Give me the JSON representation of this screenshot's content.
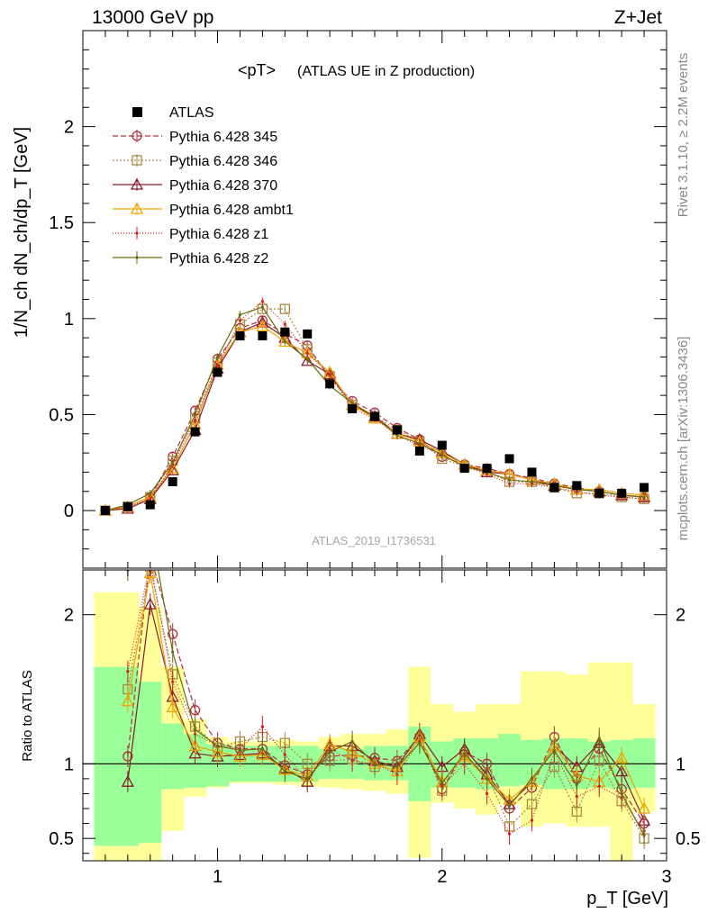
{
  "header": {
    "beam": "13000 GeV pp",
    "process": "Z+Jet"
  },
  "side_labels": {
    "rivet": "Rivet 3.1.10, ≥ 2.2M events",
    "mcplots": "mcplots.cern.ch [arXiv:1306.3436]"
  },
  "chart_data": {
    "type": "scatter",
    "title": "<pT>",
    "subtitle": "(ATLAS UE in Z production)",
    "watermark": "ATLAS_2019_I1736531",
    "xlabel": "p_T [GeV]",
    "ylabel": "1/N_ch dN_ch/dp_T [GeV]",
    "ratio_ylabel": "Ratio to ATLAS",
    "xlim": [
      0.4,
      3.0
    ],
    "ylim": [
      -0.3,
      2.5
    ],
    "ratio_ylim": [
      0.35,
      2.3
    ],
    "x_ticks": [
      "1",
      "2",
      "3"
    ],
    "y_ticks": [
      "0",
      "0.5",
      "1",
      "1.5",
      "2"
    ],
    "ratio_ticks": [
      "0.5",
      "1",
      "2"
    ],
    "x": [
      0.5,
      0.6,
      0.7,
      0.8,
      0.9,
      1.0,
      1.1,
      1.2,
      1.3,
      1.4,
      1.5,
      1.6,
      1.7,
      1.8,
      1.9,
      2.0,
      2.1,
      2.2,
      2.3,
      2.4,
      2.5,
      2.6,
      2.7,
      2.8,
      2.9
    ],
    "data": {
      "name": "ATLAS",
      "values": [
        0.0,
        0.02,
        0.03,
        0.15,
        0.41,
        0.72,
        0.91,
        0.91,
        0.93,
        0.92,
        0.66,
        0.53,
        0.49,
        0.42,
        0.31,
        0.34,
        0.22,
        0.22,
        0.27,
        0.2,
        0.12,
        0.13,
        0.09,
        0.09,
        0.12
      ]
    },
    "series": [
      {
        "name": "Pythia 6.428 345",
        "color": "#b03040",
        "marker": "circle",
        "dash": "6,3",
        "values": [
          0.0,
          0.02,
          0.07,
          0.28,
          0.52,
          0.79,
          0.95,
          0.99,
          0.92,
          0.86,
          0.69,
          0.57,
          0.51,
          0.43,
          0.37,
          0.28,
          0.24,
          0.22,
          0.19,
          0.17,
          0.14,
          0.12,
          0.1,
          0.08,
          0.07
        ],
        "ratio": [
          null,
          1.05,
          2.4,
          1.87,
          1.36,
          1.14,
          1.1,
          1.1,
          0.99,
          0.93,
          1.05,
          1.06,
          1.04,
          1.02,
          1.18,
          0.83,
          1.08,
          1.0,
          0.7,
          0.84,
          1.18,
          0.9,
          1.1,
          0.83,
          0.6
        ]
      },
      {
        "name": "Pythia 6.428 346",
        "color": "#a88a40",
        "marker": "square",
        "dash": "2,2",
        "values": [
          0.0,
          0.02,
          0.07,
          0.26,
          0.48,
          0.77,
          0.97,
          1.05,
          1.05,
          0.84,
          0.7,
          0.55,
          0.49,
          0.42,
          0.36,
          0.27,
          0.23,
          0.2,
          0.15,
          0.15,
          0.12,
          0.09,
          0.09,
          0.07,
          0.06
        ],
        "ratio": [
          null,
          1.5,
          2.32,
          1.6,
          1.25,
          1.11,
          1.15,
          1.18,
          1.14,
          1.0,
          1.02,
          1.03,
          0.98,
          1.0,
          1.17,
          0.82,
          1.06,
          0.93,
          0.58,
          0.73,
          0.98,
          0.68,
          1.02,
          0.75,
          0.5
        ]
      },
      {
        "name": "Pythia 6.428 370",
        "color": "#8b1a2a",
        "marker": "triangle",
        "dash": "",
        "values": [
          0.0,
          0.01,
          0.06,
          0.21,
          0.42,
          0.74,
          0.93,
          0.98,
          0.9,
          0.78,
          0.71,
          0.55,
          0.49,
          0.4,
          0.37,
          0.31,
          0.24,
          0.2,
          0.19,
          0.16,
          0.13,
          0.11,
          0.1,
          0.08,
          0.07
        ],
        "ratio": [
          null,
          0.88,
          2.07,
          1.45,
          1.07,
          1.05,
          1.06,
          1.07,
          0.97,
          0.88,
          1.12,
          1.12,
          1.02,
          0.98,
          1.2,
          0.98,
          1.1,
          0.93,
          0.73,
          0.88,
          1.12,
          0.98,
          1.14,
          0.95,
          0.62
        ]
      },
      {
        "name": "Pythia 6.428 ambt1",
        "color": "#f0a000",
        "marker": "triangle",
        "dash": "",
        "values": [
          0.0,
          0.02,
          0.07,
          0.22,
          0.45,
          0.76,
          0.93,
          0.96,
          0.88,
          0.82,
          0.72,
          0.55,
          0.48,
          0.4,
          0.36,
          0.3,
          0.24,
          0.21,
          0.19,
          0.16,
          0.14,
          0.11,
          0.11,
          0.09,
          0.08
        ],
        "ratio": [
          null,
          1.42,
          2.28,
          1.38,
          1.12,
          1.08,
          1.05,
          1.06,
          0.96,
          0.92,
          1.13,
          1.08,
          1.0,
          0.95,
          1.18,
          0.88,
          1.05,
          0.9,
          0.76,
          0.88,
          1.12,
          0.92,
          0.88,
          1.04,
          0.7
        ]
      },
      {
        "name": "Pythia 6.428 z1",
        "color": "#d42020",
        "marker": "dot",
        "dash": "1,2",
        "values": [
          0.0,
          0.02,
          0.06,
          0.24,
          0.47,
          0.75,
          0.99,
          1.09,
          0.97,
          0.82,
          0.71,
          0.53,
          0.48,
          0.39,
          0.34,
          0.29,
          0.23,
          0.19,
          0.14,
          0.14,
          0.12,
          0.1,
          0.08,
          0.07,
          0.06
        ],
        "ratio": [
          null,
          1.62,
          2.35,
          1.55,
          1.2,
          1.12,
          1.1,
          1.25,
          1.06,
          0.9,
          1.1,
          1.02,
          1.0,
          0.93,
          1.15,
          0.85,
          1.0,
          0.8,
          0.53,
          0.62,
          1.08,
          0.78,
          0.85,
          0.77,
          0.55
        ]
      },
      {
        "name": "Pythia 6.428 z2",
        "color": "#6b6b10",
        "marker": "dot",
        "dash": "",
        "values": [
          0.0,
          0.03,
          0.09,
          0.25,
          0.5,
          0.8,
          1.02,
          1.06,
          0.88,
          0.79,
          0.65,
          0.56,
          0.49,
          0.39,
          0.35,
          0.29,
          0.23,
          0.2,
          0.16,
          0.15,
          0.13,
          0.11,
          0.1,
          0.08,
          0.07
        ],
        "ratio": [
          null,
          2.3,
          2.6,
          1.75,
          1.23,
          1.12,
          1.09,
          1.1,
          0.95,
          0.9,
          1.08,
          1.15,
          1.0,
          0.98,
          1.14,
          0.87,
          1.07,
          0.9,
          0.72,
          0.9,
          1.09,
          0.86,
          1.17,
          0.8,
          0.52
        ]
      }
    ],
    "ratio_band_stat": [
      [
        0.45,
        1.65
      ],
      [
        0.45,
        1.65
      ],
      [
        0.47,
        1.55
      ],
      [
        0.83,
        1.27
      ],
      [
        0.84,
        1.2
      ],
      [
        0.85,
        1.13
      ],
      [
        0.88,
        1.12
      ],
      [
        0.88,
        1.12
      ],
      [
        0.88,
        1.12
      ],
      [
        0.88,
        1.12
      ],
      [
        0.9,
        1.1
      ],
      [
        0.9,
        1.1
      ],
      [
        0.89,
        1.12
      ],
      [
        0.89,
        1.12
      ],
      [
        0.75,
        1.25
      ],
      [
        0.84,
        1.15
      ],
      [
        0.84,
        1.17
      ],
      [
        0.83,
        1.17
      ],
      [
        0.85,
        1.2
      ],
      [
        0.86,
        1.16
      ],
      [
        0.83,
        1.17
      ],
      [
        0.83,
        1.17
      ],
      [
        0.84,
        1.15
      ],
      [
        0.83,
        1.16
      ],
      [
        0.84,
        1.17
      ]
    ],
    "ratio_band_total": [
      [
        0.3,
        2.15
      ],
      [
        0.3,
        2.15
      ],
      [
        0.3,
        2.05
      ],
      [
        0.55,
        1.65
      ],
      [
        0.78,
        1.3
      ],
      [
        0.84,
        1.18
      ],
      [
        0.87,
        1.15
      ],
      [
        0.87,
        1.15
      ],
      [
        0.86,
        1.16
      ],
      [
        0.85,
        1.15
      ],
      [
        0.84,
        1.18
      ],
      [
        0.83,
        1.2
      ],
      [
        0.82,
        1.2
      ],
      [
        0.8,
        1.23
      ],
      [
        0.37,
        1.65
      ],
      [
        0.74,
        1.4
      ],
      [
        0.7,
        1.35
      ],
      [
        0.66,
        1.4
      ],
      [
        0.73,
        1.4
      ],
      [
        0.58,
        1.62
      ],
      [
        0.6,
        1.62
      ],
      [
        0.58,
        1.6
      ],
      [
        0.58,
        1.68
      ],
      [
        0.3,
        1.68
      ],
      [
        0.68,
        1.4
      ]
    ]
  }
}
